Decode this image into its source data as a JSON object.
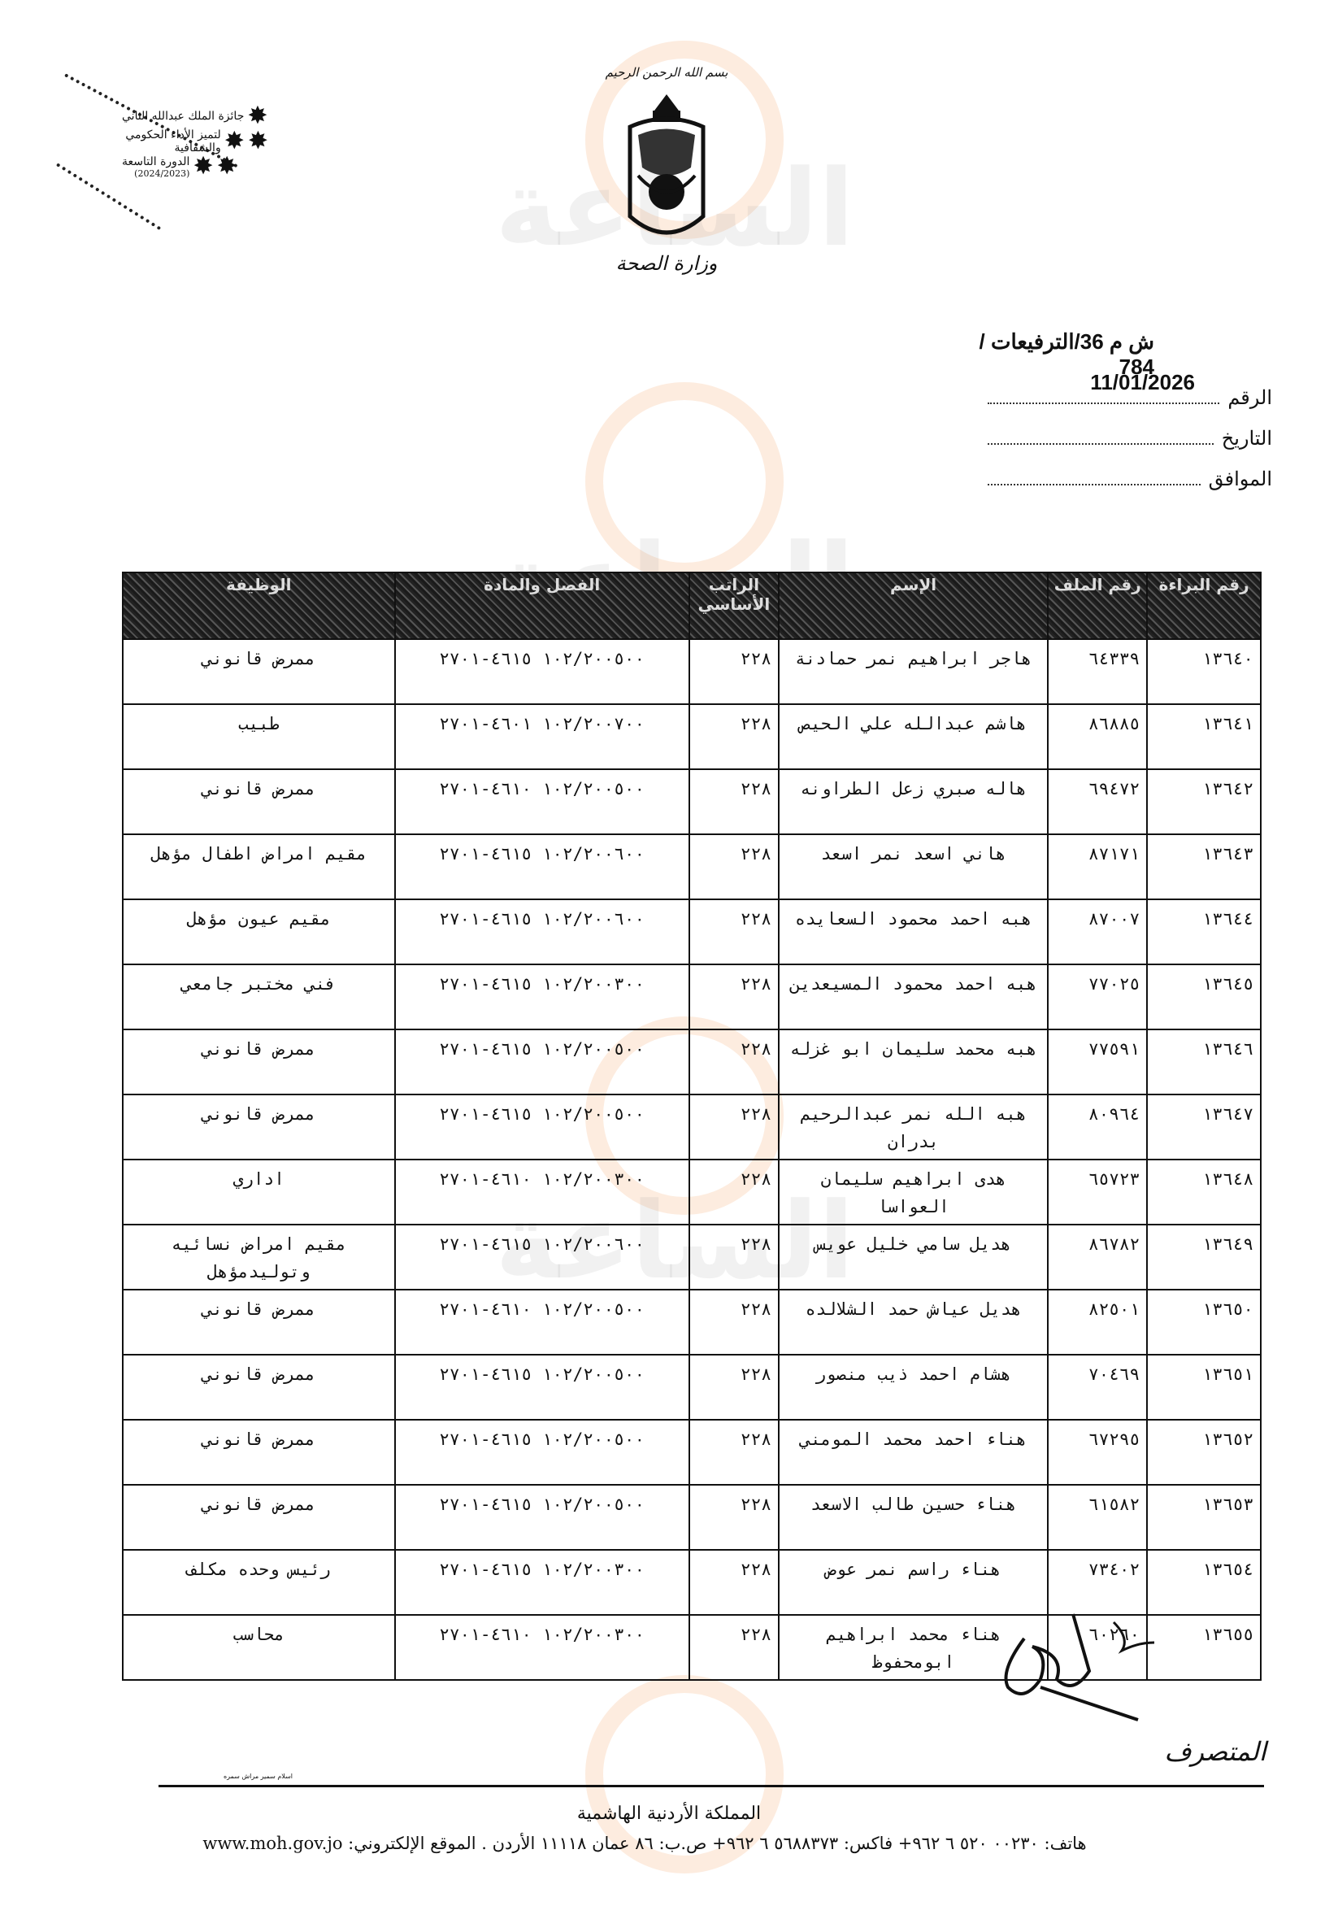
{
  "badge": {
    "line1": "جائزة الملك عبدالله الثاني",
    "line2": "لتميز الأداء الحكومي والشفافية",
    "line3": "الدورة التاسعة",
    "line4": "(2024/2023)"
  },
  "header": {
    "basmala": "بسم الله الرحمن الرحيم",
    "ministry": "وزارة الصحة",
    "reference": "ش م 36/الترفيعات / 784",
    "date": "11/01/2026",
    "fields": [
      {
        "label": "الرقم"
      },
      {
        "label": "التاريخ"
      },
      {
        "label": "الموافق"
      }
    ]
  },
  "table": {
    "columns": [
      "رقم البراءة",
      "رقم الملف",
      "الإسم",
      "الراتب الأساسي",
      "الفصل والمادة",
      "الوظيفة"
    ],
    "rows": [
      [
        "١٣٦٤٠",
        "٦٤٣٣٩",
        "هاجر ابراهيم نمر حمادنة",
        "٢٢٨",
        "١٠٢/٢٠٠٥٠٠ ٤٦١٥-٢٧٠١",
        "ممرض قانوني"
      ],
      [
        "١٣٦٤١",
        "٨٦٨٨٥",
        "هاشم عبدالله علي الحيص",
        "٢٢٨",
        "١٠٢/٢٠٠٧٠٠ ٤٦٠١-٢٧٠١",
        "طبيب"
      ],
      [
        "١٣٦٤٢",
        "٦٩٤٧٢",
        "هاله صبري زعل الطراونه",
        "٢٢٨",
        "١٠٢/٢٠٠٥٠٠ ٤٦١٠-٢٧٠١",
        "ممرض قانوني"
      ],
      [
        "١٣٦٤٣",
        "٨٧١٧١",
        "هاني اسعد نمر اسعد",
        "٢٢٨",
        "١٠٢/٢٠٠٦٠٠ ٤٦١٥-٢٧٠١",
        "مقيم امراض اطفال مؤهل"
      ],
      [
        "١٣٦٤٤",
        "٨٧٠٠٧",
        "هبه احمد محمود السعايده",
        "٢٢٨",
        "١٠٢/٢٠٠٦٠٠ ٤٦١٥-٢٧٠١",
        "مقيم عيون مؤهل"
      ],
      [
        "١٣٦٤٥",
        "٧٧٠٢٥",
        "هبه احمد محمود المسيعدين",
        "٢٢٨",
        "١٠٢/٢٠٠٣٠٠ ٤٦١٥-٢٧٠١",
        "فني مختبر جامعي"
      ],
      [
        "١٣٦٤٦",
        "٧٧٥٩١",
        "هبه محمد سليمان ابو غزله",
        "٢٢٨",
        "١٠٢/٢٠٠٥٠٠ ٤٦١٥-٢٧٠١",
        "ممرض قانوني"
      ],
      [
        "١٣٦٤٧",
        "٨٠٩٦٤",
        "هبه الله نمر عبدالرحيم بدران",
        "٢٢٨",
        "١٠٢/٢٠٠٥٠٠ ٤٦١٥-٢٧٠١",
        "ممرض قانوني"
      ],
      [
        "١٣٦٤٨",
        "٦٥٧٢٣",
        "هدى ابراهيم سليمان العواسا",
        "٢٢٨",
        "١٠٢/٢٠٠٣٠٠ ٤٦١٠-٢٧٠١",
        "اداري"
      ],
      [
        "١٣٦٤٩",
        "٨٦٧٨٢",
        "هديل سامي خليل عويس",
        "٢٢٨",
        "١٠٢/٢٠٠٦٠٠ ٤٦١٥-٢٧٠١",
        "مقيم امراض نسائيه وتوليدمؤهل"
      ],
      [
        "١٣٦٥٠",
        "٨٢٥٠١",
        "هديل عياش حمد الشلالده",
        "٢٢٨",
        "١٠٢/٢٠٠٥٠٠ ٤٦١٠-٢٧٠١",
        "ممرض قانوني"
      ],
      [
        "١٣٦٥١",
        "٧٠٤٦٩",
        "هشام احمد ذيب منصور",
        "٢٢٨",
        "١٠٢/٢٠٠٥٠٠ ٤٦١٥-٢٧٠١",
        "ممرض قانوني"
      ],
      [
        "١٣٦٥٢",
        "٦٧٢٩٥",
        "هناء احمد محمد المومني",
        "٢٢٨",
        "١٠٢/٢٠٠٥٠٠ ٤٦١٥-٢٧٠١",
        "ممرض قانوني"
      ],
      [
        "١٣٦٥٣",
        "٦١٥٨٢",
        "هناء حسين طالب الاسعد",
        "٢٢٨",
        "١٠٢/٢٠٠٥٠٠ ٤٦١٥-٢٧٠١",
        "ممرض قانوني"
      ],
      [
        "١٣٦٥٤",
        "٧٣٤٠٢",
        "هناء راسم نمر عوض",
        "٢٢٨",
        "١٠٢/٢٠٠٣٠٠ ٤٦١٥-٢٧٠١",
        "رئيس وحده مكلف"
      ],
      [
        "١٣٦٥٥",
        "٦٠٢٦٠",
        "هناء محمد ابراهيم ابومحفوظ",
        "٢٢٨",
        "١٠٢/٢٠٠٣٠٠ ٤٦١٠-٢٧٠١",
        "محاسب"
      ]
    ]
  },
  "signature": {
    "title": "المتصرف",
    "typist_note": "اسلام سمير مراش سمره"
  },
  "footer": {
    "country": "المملكة الأردنية الهاشمية",
    "contact": "هاتف: ٠٠٢٣٠ ٥٢٠ ٦ ٩٦٢+  فاكس: ٥٦٨٨٣٧٣ ٦ ٩٦٢+  ص.ب: ٨٦ عمان ١١١١٨ الأردن . الموقع الإلكتروني: www.moh.gov.jo"
  },
  "watermark": "مدار الساعة الإخبارية",
  "colors": {
    "ink": "#111111",
    "watermark_orange": "#f5aa6e",
    "watermark_gray": "#969696"
  }
}
